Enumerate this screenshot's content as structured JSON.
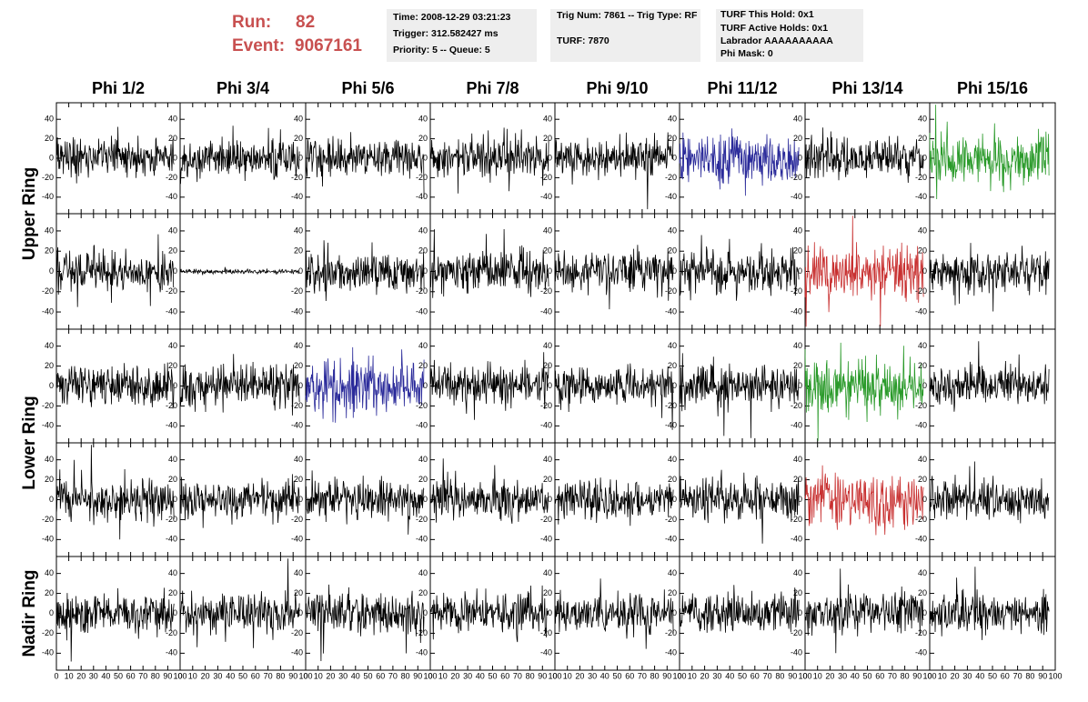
{
  "header": {
    "run_label": "Run:",
    "run": "82",
    "event_label": "Event:",
    "event": "9067161"
  },
  "info": [
    [
      "Time: 2008-12-29 03:21:23",
      "Trigger: 312.582427 ms",
      "Priority: 5 -- Queue: 5"
    ],
    [
      "Trig Num: 7861 -- Trig Type: RF",
      "TURF: 7870"
    ],
    [
      "TURF This Hold: 0x1",
      "TURF Active Holds: 0x1",
      "Labrador AAAAAAAAAA",
      "Phi Mask: 0"
    ]
  ],
  "columns": [
    "Phi 1/2",
    "Phi 3/4",
    "Phi 5/6",
    "Phi 7/8",
    "Phi 9/10",
    "Phi 11/12",
    "Phi 13/14",
    "Phi 15/16"
  ],
  "rings": [
    "Upper Ring",
    "Lower Ring",
    "Nadir Ring"
  ],
  "ylim": [
    -57,
    57
  ],
  "yticks": [
    -40,
    -20,
    0,
    20,
    40
  ],
  "xlim": [
    0,
    100
  ],
  "xticks": [
    0,
    10,
    20,
    30,
    40,
    50,
    60,
    70,
    80,
    90,
    100
  ],
  "panel_colors": [
    [
      "#000000",
      "#000000",
      "#000000",
      "#000000",
      "#000000",
      "#2a2a9a",
      "#000000",
      "#2a9a2a"
    ],
    [
      "#000000",
      "#000000",
      "#000000",
      "#000000",
      "#000000",
      "#000000",
      "#c83030",
      "#000000"
    ],
    [
      "#000000",
      "#000000",
      "#2a2a9a",
      "#000000",
      "#000000",
      "#000000",
      "#2a9a2a",
      "#000000"
    ],
    [
      "#000000",
      "#000000",
      "#000000",
      "#000000",
      "#000000",
      "#000000",
      "#c83030",
      "#000000"
    ],
    [
      "#000000",
      "#000000",
      "#000000",
      "#000000",
      "#000000",
      "#000000",
      "#000000",
      "#000000"
    ]
  ]
}
